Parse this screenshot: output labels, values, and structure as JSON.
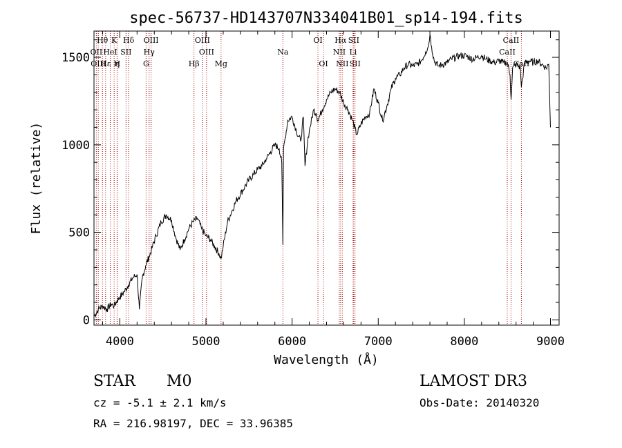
{
  "chart_data": {
    "type": "line",
    "title": "spec-56737-HD143707N334041B01_sp14-194.fits",
    "xlabel": "Wavelength (Å)",
    "ylabel": "Flux (relative)",
    "xlim": [
      3700,
      9100
    ],
    "ylim": [
      -30,
      1650
    ],
    "xticks": [
      4000,
      5000,
      6000,
      7000,
      8000,
      9000
    ],
    "yticks": [
      0,
      500,
      1000,
      1500
    ],
    "grid": false,
    "series": [
      {
        "x": [
          3700,
          3750,
          3800,
          3850,
          3900,
          3934,
          3968,
          4000,
          4050,
          4100,
          4150,
          4200,
          4227,
          4260,
          4300,
          4340,
          4380,
          4420,
          4480,
          4540,
          4600,
          4650,
          4700,
          4750,
          4800,
          4850,
          4900,
          4950,
          5000,
          5050,
          5100,
          5150,
          5175,
          5200,
          5250,
          5300,
          5350,
          5400,
          5450,
          5500,
          5550,
          5600,
          5650,
          5700,
          5750,
          5800,
          5850,
          5880,
          5893,
          5900,
          5920,
          5950,
          6000,
          6050,
          6100,
          6130,
          6150,
          6180,
          6200,
          6250,
          6280,
          6300,
          6350,
          6400,
          6450,
          6500,
          6550,
          6600,
          6650,
          6700,
          6750,
          6800,
          6850,
          6900,
          6950,
          7000,
          7050,
          7100,
          7150,
          7200,
          7250,
          7300,
          7350,
          7400,
          7450,
          7500,
          7550,
          7580,
          7600,
          7620,
          7650,
          7700,
          7750,
          7800,
          7850,
          7900,
          7950,
          8000,
          8050,
          8100,
          8150,
          8200,
          8250,
          8300,
          8350,
          8400,
          8450,
          8500,
          8530,
          8542,
          8560,
          8600,
          8650,
          8662,
          8700,
          8750,
          8800,
          8850,
          8900,
          8950,
          8980,
          9000
        ],
        "y": [
          20,
          60,
          80,
          60,
          90,
          80,
          110,
          130,
          160,
          200,
          240,
          260,
          60,
          240,
          310,
          360,
          420,
          480,
          560,
          600,
          570,
          470,
          400,
          460,
          520,
          560,
          580,
          520,
          480,
          460,
          420,
          380,
          350,
          420,
          560,
          620,
          680,
          720,
          760,
          800,
          830,
          860,
          880,
          920,
          960,
          1000,
          980,
          900,
          430,
          980,
          1040,
          1140,
          1160,
          1080,
          1020,
          1160,
          880,
          1020,
          1080,
          1200,
          1180,
          1140,
          1200,
          1260,
          1300,
          1320,
          1300,
          1240,
          1200,
          1140,
          1060,
          1120,
          1160,
          1180,
          1320,
          1240,
          1140,
          1220,
          1320,
          1380,
          1400,
          1440,
          1460,
          1450,
          1460,
          1480,
          1530,
          1560,
          1630,
          1560,
          1480,
          1450,
          1460,
          1470,
          1490,
          1500,
          1510,
          1510,
          1500,
          1490,
          1500,
          1510,
          1490,
          1480,
          1470,
          1480,
          1470,
          1470,
          1400,
          1260,
          1440,
          1460,
          1440,
          1330,
          1470,
          1480,
          1470,
          1480,
          1460,
          1440,
          1460,
          1100
        ]
      }
    ],
    "lines": [
      {
        "label": "Hθ",
        "x": 3798,
        "row": 0
      },
      {
        "label": "OII",
        "x": 3727,
        "row": 1
      },
      {
        "label": "OIII",
        "x": 3750,
        "row": 2
      },
      {
        "label": "Hε",
        "x": 3835,
        "row": 2
      },
      {
        "label": "K",
        "x": 3934,
        "row": 0
      },
      {
        "label": "HeI",
        "x": 3889,
        "row": 1
      },
      {
        "label": "η",
        "x": 3970,
        "row": 2
      },
      {
        "label": "H",
        "x": 3968,
        "row": 2
      },
      {
        "label": "SII",
        "x": 4072,
        "row": 1
      },
      {
        "label": "Hδ",
        "x": 4102,
        "row": 0
      },
      {
        "label": "OIII",
        "x": 4363,
        "row": 0
      },
      {
        "label": "Hγ",
        "x": 4340,
        "row": 1
      },
      {
        "label": "G",
        "x": 4305,
        "row": 2
      },
      {
        "label": "Hβ",
        "x": 4861,
        "row": 2
      },
      {
        "label": "OIII",
        "x": 4959,
        "row": 0
      },
      {
        "label": "OIII",
        "x": 5007,
        "row": 1
      },
      {
        "label": "Mg",
        "x": 5175,
        "row": 2
      },
      {
        "label": "Na",
        "x": 5893,
        "row": 1
      },
      {
        "label": "OI",
        "x": 6300,
        "row": 0
      },
      {
        "label": "OI",
        "x": 6364,
        "row": 2
      },
      {
        "label": "Hα",
        "x": 6563,
        "row": 0
      },
      {
        "label": "NII",
        "x": 6548,
        "row": 1
      },
      {
        "label": "NII",
        "x": 6583,
        "row": 2
      },
      {
        "label": "SII",
        "x": 6716,
        "row": 0
      },
      {
        "label": "Li",
        "x": 6708,
        "row": 1
      },
      {
        "label": "SII",
        "x": 6731,
        "row": 2
      },
      {
        "label": "CaII",
        "x": 8542,
        "row": 0
      },
      {
        "label": "CaII",
        "x": 8498,
        "row": 1
      },
      {
        "label": "CaII",
        "x": 8662,
        "row": 2
      }
    ]
  },
  "info": {
    "object_class": "STAR",
    "subclass": "M0",
    "survey": "LAMOST DR3",
    "redshift": "cz = -5.1 ± 2.1 km/s",
    "obs_date": "Obs-Date: 20140320",
    "coords": "RA = 216.98197, DEC =  33.96385"
  },
  "colors": {
    "spectrum": "#000000",
    "line_marker": "#aa0000"
  }
}
